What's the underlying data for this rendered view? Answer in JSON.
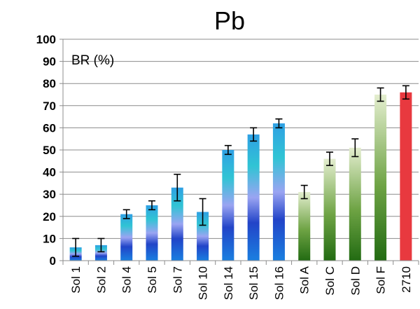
{
  "chart_data": {
    "type": "bar",
    "title": "Pb",
    "ylabel": "BR (%)",
    "xlabel": "",
    "ylim": [
      0,
      100
    ],
    "yticks": [
      0,
      10,
      20,
      30,
      40,
      50,
      60,
      70,
      80,
      90,
      100
    ],
    "grid": "horizontal",
    "categories": [
      "Sol 1",
      "Sol 2",
      "Sol 4",
      "Sol 5",
      "Sol 7",
      "Sol 10",
      "Sol 14",
      "Sol 15",
      "Sol 16",
      "Sol A",
      "Sol C",
      "Sol D",
      "Sol F",
      "2710"
    ],
    "values": [
      6,
      7,
      21,
      25,
      33,
      22,
      50,
      57,
      62,
      31,
      46,
      51,
      75,
      76
    ],
    "errors": [
      4,
      3,
      2,
      2,
      6,
      6,
      2,
      3,
      2,
      3,
      3,
      4,
      3,
      3
    ],
    "bar_colors": [
      "blue-gradient",
      "blue-gradient",
      "blue-gradient",
      "blue-gradient",
      "blue-gradient",
      "blue-gradient",
      "blue-gradient",
      "blue-gradient",
      "blue-gradient",
      "green-gradient",
      "green-gradient",
      "green-gradient",
      "green-gradient",
      "#e8393f"
    ]
  }
}
